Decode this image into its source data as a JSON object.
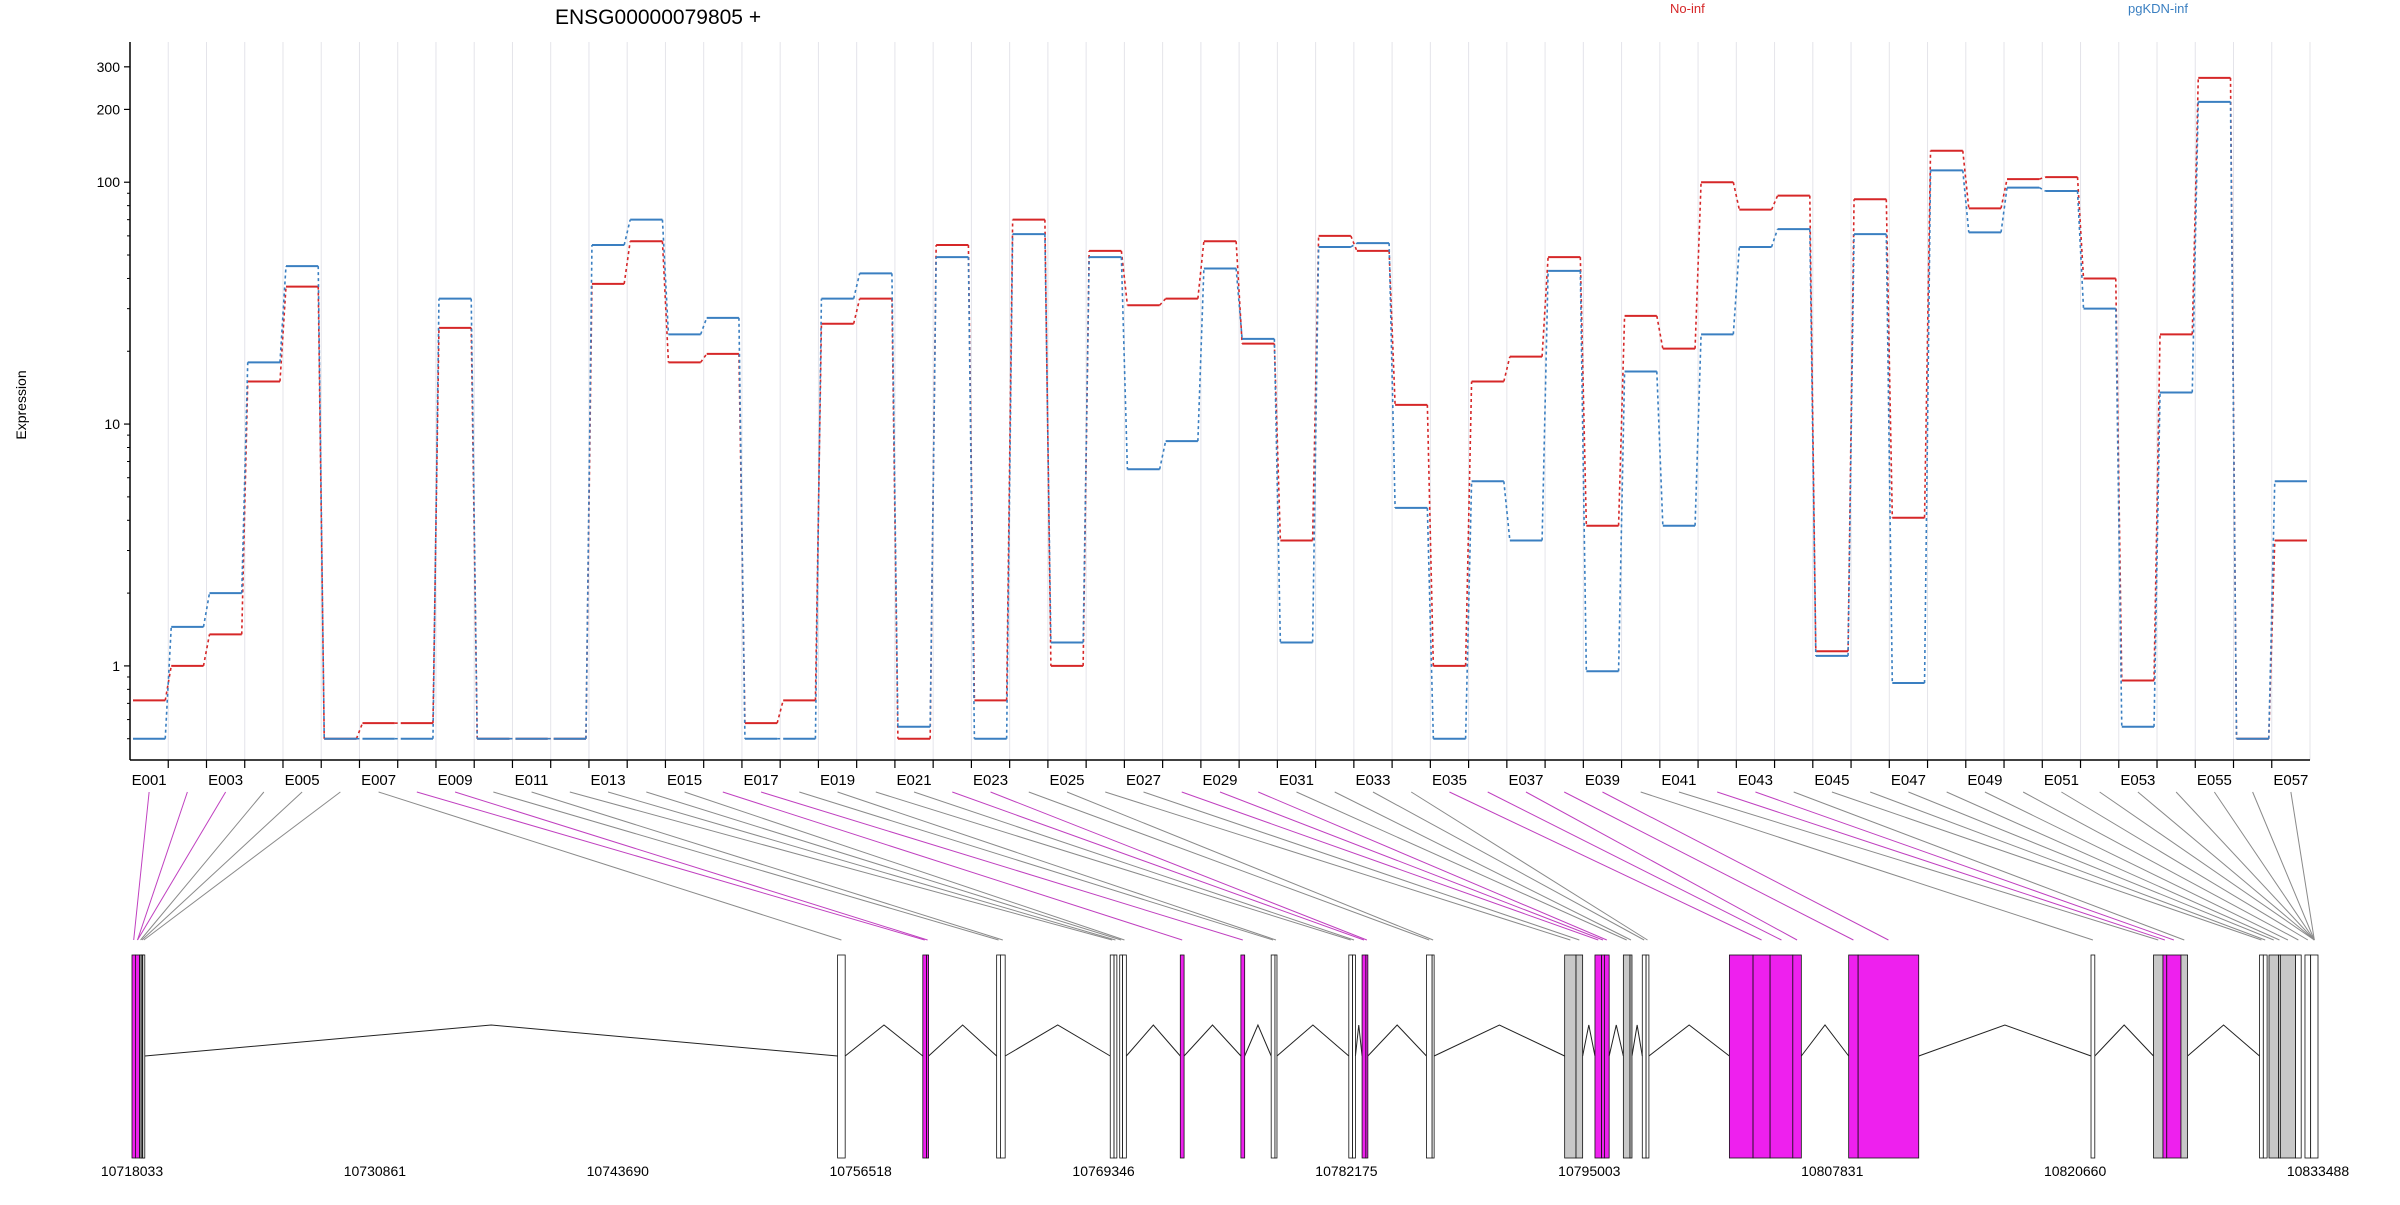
{
  "title": "ENSG00000079805 +",
  "ylabel": "Expression",
  "legend": [
    {
      "name": "No-inf",
      "color": "#d62728"
    },
    {
      "name": "pgKDN-inf",
      "color": "#3a7fc1"
    }
  ],
  "colors": {
    "exon_gray": "#c8c8c8",
    "exon_magenta": "#ee20ee",
    "grid": "#e4e4ea",
    "connector_gray": "#8a8a8a",
    "connector_magenta": "#c040c0"
  },
  "chart_data": {
    "type": "line",
    "yscale": "log",
    "ylim": [
      0.48,
      380
    ],
    "yticks": [
      1,
      10,
      100,
      200,
      300
    ],
    "ytick_labels": [
      "1",
      "10",
      "100",
      "200",
      "300"
    ],
    "categories": [
      "E001",
      "E002",
      "E003",
      "E004",
      "E005",
      "E006",
      "E007",
      "E008",
      "E009",
      "E010",
      "E011",
      "E012",
      "E013",
      "E014",
      "E015",
      "E016",
      "E017",
      "E018",
      "E019",
      "E020",
      "E021",
      "E022",
      "E023",
      "E024",
      "E025",
      "E026",
      "E027",
      "E028",
      "E029",
      "E030",
      "E031",
      "E032",
      "E033",
      "E034",
      "E035",
      "E036",
      "E037",
      "E038",
      "E039",
      "E040",
      "E041",
      "E042",
      "E043",
      "E044",
      "E045",
      "E046",
      "E047",
      "E048",
      "E049",
      "E050",
      "E051",
      "E052",
      "E053",
      "E054",
      "E055",
      "E056",
      "E057"
    ],
    "xtick_labels": [
      "E001",
      "",
      "E003",
      "",
      "E005",
      "",
      "E007",
      "",
      "E009",
      "",
      "E011",
      "",
      "E013",
      "",
      "E015",
      "",
      "E017",
      "",
      "E019",
      "",
      "E021",
      "",
      "E023",
      "",
      "E025",
      "",
      "E027",
      "",
      "E029",
      "",
      "E031",
      "",
      "E033",
      "",
      "E035",
      "",
      "E037",
      "",
      "E039",
      "",
      "E041",
      "",
      "E043",
      "",
      "E045",
      "",
      "E047",
      "",
      "E049",
      "",
      "E051",
      "",
      "E053",
      "",
      "E055",
      "",
      "E057"
    ],
    "series": [
      {
        "name": "No-inf",
        "values": [
          0.72,
          1.0,
          1.35,
          15,
          37,
          0.5,
          0.58,
          0.58,
          25,
          0.5,
          0.5,
          0.5,
          38,
          57,
          18,
          19.5,
          0.58,
          0.72,
          26,
          33,
          0.5,
          55,
          0.72,
          70,
          1.0,
          52,
          31,
          33,
          57,
          21.5,
          3.3,
          60,
          52,
          12,
          1.0,
          15,
          19,
          49,
          3.8,
          28,
          20.5,
          100,
          77,
          88,
          1.15,
          85,
          4.1,
          135,
          78,
          103,
          105,
          40,
          0.87,
          23.5,
          270,
          0.5,
          3.3
        ]
      },
      {
        "name": "pgKDN-inf",
        "values": [
          0.5,
          1.45,
          2.0,
          18,
          45,
          0.5,
          0.5,
          0.5,
          33,
          0.5,
          0.5,
          0.5,
          55,
          70,
          23.5,
          27.5,
          0.5,
          0.5,
          33,
          42,
          0.56,
          49,
          0.5,
          61,
          1.25,
          49,
          6.5,
          8.5,
          44,
          22.5,
          1.25,
          54,
          56,
          4.5,
          0.5,
          5.8,
          3.3,
          43,
          0.95,
          16.5,
          3.8,
          23.5,
          54,
          64,
          1.1,
          61,
          0.85,
          112,
          62,
          95,
          92,
          30,
          0.56,
          13.5,
          215,
          0.5,
          5.8
        ]
      }
    ],
    "genomic_ticks": [
      "10718033",
      "10730861",
      "10743690",
      "10756518",
      "10769346",
      "10782175",
      "10795003",
      "10807831",
      "10820660",
      "10833488"
    ],
    "genomic_range": [
      10718033,
      10833488
    ],
    "exons": [
      [
        10718033,
        10718213,
        "m"
      ],
      [
        10718213,
        10718433,
        "m"
      ],
      [
        10718433,
        10718503,
        "w"
      ],
      [
        10718503,
        10718563,
        "w"
      ],
      [
        10718563,
        10718603,
        "w"
      ],
      [
        10718603,
        10718663,
        "w"
      ],
      [
        10755300,
        10755700,
        "w"
      ],
      [
        10759800,
        10760000,
        "m"
      ],
      [
        10760000,
        10760050,
        "m"
      ],
      [
        10763700,
        10763900,
        "w"
      ],
      [
        10763900,
        10764150,
        "w"
      ],
      [
        10769700,
        10769900,
        "w"
      ],
      [
        10769900,
        10770050,
        "w"
      ],
      [
        10770200,
        10770350,
        "w"
      ],
      [
        10770350,
        10770550,
        "w"
      ],
      [
        10773400,
        10773600,
        "m"
      ],
      [
        10776600,
        10776800,
        "m"
      ],
      [
        10778200,
        10778400,
        "w"
      ],
      [
        10778400,
        10778480,
        "w"
      ],
      [
        10782300,
        10782500,
        "w"
      ],
      [
        10782500,
        10782650,
        "w"
      ],
      [
        10783000,
        10783200,
        "m"
      ],
      [
        10783200,
        10783300,
        "m"
      ],
      [
        10786400,
        10786700,
        "w"
      ],
      [
        10786700,
        10786800,
        "w"
      ],
      [
        10793700,
        10794300,
        "g"
      ],
      [
        10794300,
        10794650,
        "g"
      ],
      [
        10795300,
        10795650,
        "m"
      ],
      [
        10795650,
        10795800,
        "m"
      ],
      [
        10795800,
        10796050,
        "m"
      ],
      [
        10796800,
        10797150,
        "g"
      ],
      [
        10797150,
        10797250,
        "g"
      ],
      [
        10797800,
        10798000,
        "w"
      ],
      [
        10798000,
        10798150,
        "w"
      ],
      [
        10802400,
        10803650,
        "m"
      ],
      [
        10803650,
        10804550,
        "m"
      ],
      [
        10804550,
        10805750,
        "m"
      ],
      [
        10805750,
        10806200,
        "m"
      ],
      [
        10808700,
        10809200,
        "m"
      ],
      [
        10809200,
        10812400,
        "m"
      ],
      [
        10821500,
        10821700,
        "w"
      ],
      [
        10824800,
        10825300,
        "g"
      ],
      [
        10825300,
        10825500,
        "m"
      ],
      [
        10825500,
        10826250,
        "m"
      ],
      [
        10826250,
        10826600,
        "g"
      ],
      [
        10830400,
        10830600,
        "w"
      ],
      [
        10830600,
        10830800,
        "w"
      ],
      [
        10830900,
        10831400,
        "g"
      ],
      [
        10831400,
        10831500,
        "g"
      ],
      [
        10831500,
        10832300,
        "g"
      ],
      [
        10832300,
        10832600,
        "w"
      ],
      [
        10832800,
        10833100,
        "w"
      ],
      [
        10833100,
        10833488,
        "w"
      ]
    ],
    "exon_map": [
      0,
      1,
      1,
      2,
      3,
      5,
      6,
      7,
      8,
      9,
      10,
      11,
      12,
      13,
      14,
      15,
      16,
      17,
      18,
      19,
      20,
      21,
      22,
      23,
      24,
      25,
      26,
      27,
      28,
      29,
      30,
      31,
      32,
      33,
      35,
      36,
      37,
      38,
      39,
      40,
      41,
      42,
      43,
      44,
      45,
      46,
      47,
      48,
      49,
      50,
      51,
      52,
      52,
      52,
      52,
      52,
      52
    ]
  }
}
